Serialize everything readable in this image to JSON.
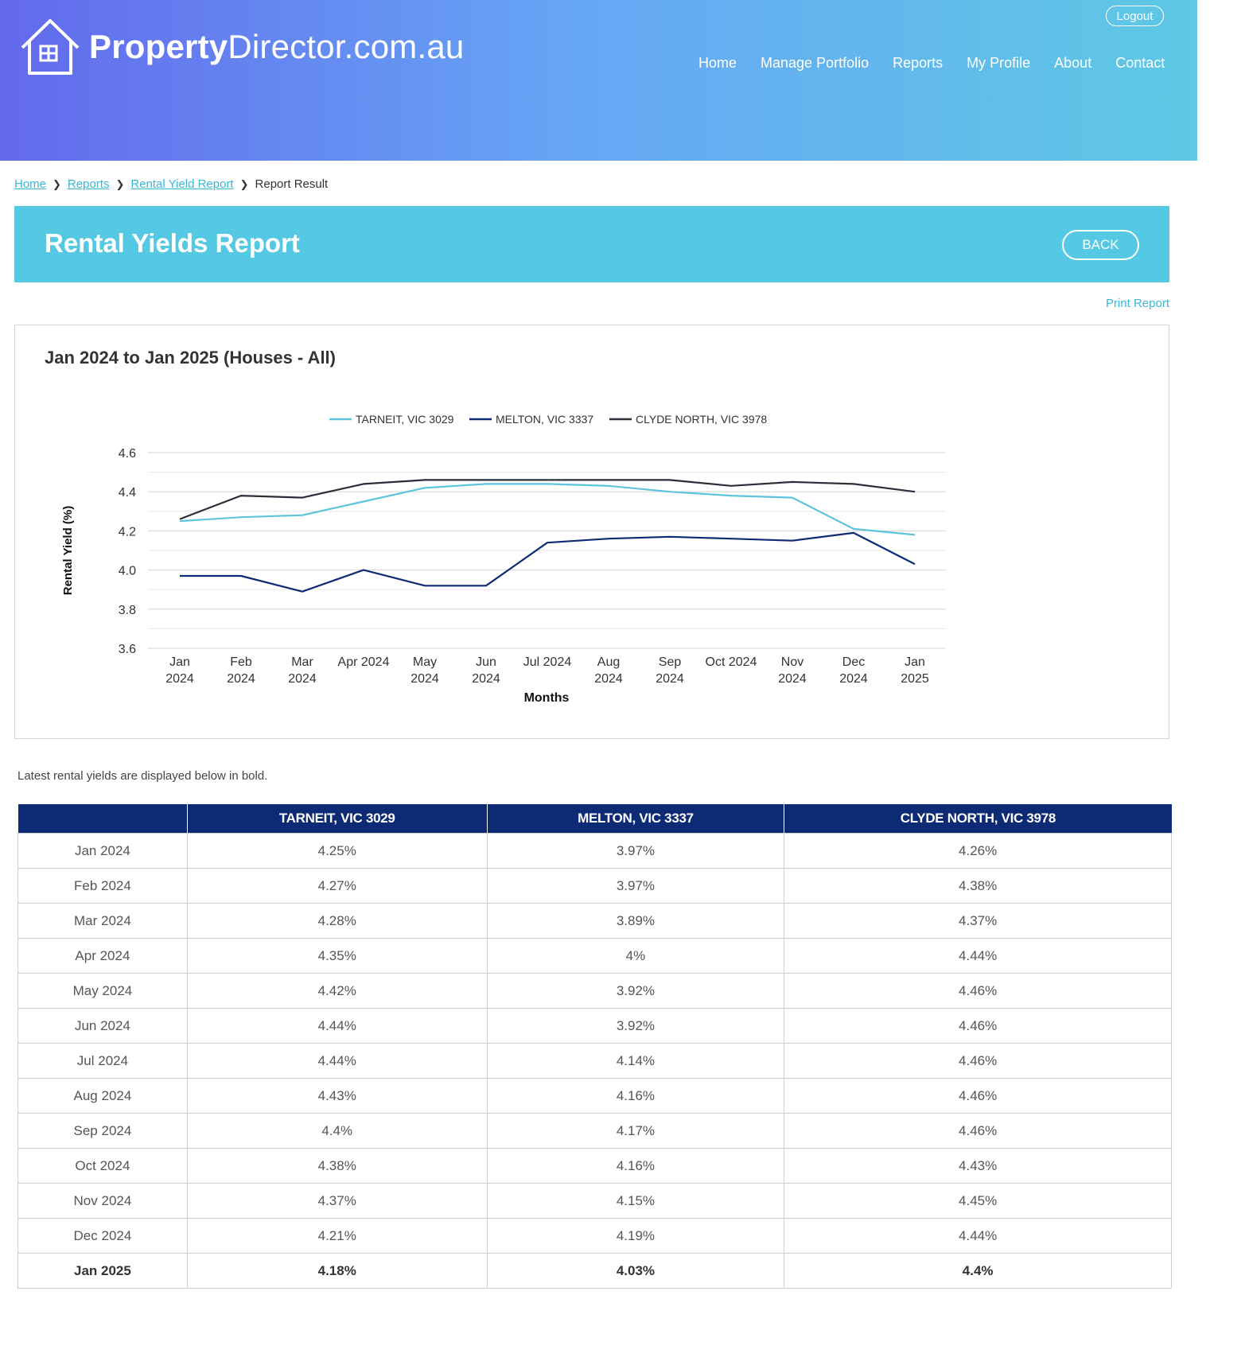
{
  "brand": {
    "bold": "Property",
    "light": "Director.com.au"
  },
  "header": {
    "logout": "Logout",
    "nav": [
      "Home",
      "Manage Portfolio",
      "Reports",
      "My Profile",
      "About",
      "Contact"
    ]
  },
  "breadcrumb": {
    "home": "Home",
    "reports": "Reports",
    "rental_yield": "Rental Yield Report",
    "current": "Report Result"
  },
  "banner": {
    "title": "Rental Yields Report",
    "back": "BACK"
  },
  "print_report": "Print Report",
  "colors": {
    "tarneit": "#5ec4de",
    "melton": "#0d2b74",
    "clyde": "#2a2f3a",
    "table_header": "#0d2b74",
    "banner": "#55c8e3"
  },
  "chart_data": {
    "type": "line",
    "title": "Jan 2024 to Jan 2025 (Houses - All)",
    "xlabel": "Months",
    "ylabel": "Rental Yield (%)",
    "ylim": [
      3.6,
      4.6
    ],
    "yticks": [
      "4.6",
      "4.4",
      "4.2",
      "4.0",
      "3.8",
      "3.6"
    ],
    "categories": [
      "Jan 2024",
      "Feb 2024",
      "Mar 2024",
      "Apr 2024",
      "May 2024",
      "Jun 2024",
      "Jul 2024",
      "Aug 2024",
      "Sep 2024",
      "Oct 2024",
      "Nov 2024",
      "Dec 2024",
      "Jan 2025"
    ],
    "legend_position": "top",
    "grid": true,
    "series": [
      {
        "name": "TARNEIT, VIC 3029",
        "values": [
          4.25,
          4.27,
          4.28,
          4.35,
          4.42,
          4.44,
          4.44,
          4.43,
          4.4,
          4.38,
          4.37,
          4.21,
          4.18
        ]
      },
      {
        "name": "MELTON, VIC 3337",
        "values": [
          3.97,
          3.97,
          3.89,
          4.0,
          3.92,
          3.92,
          4.14,
          4.16,
          4.17,
          4.16,
          4.15,
          4.19,
          4.03
        ]
      },
      {
        "name": "CLYDE NORTH, VIC 3978",
        "values": [
          4.26,
          4.38,
          4.37,
          4.44,
          4.46,
          4.46,
          4.46,
          4.46,
          4.46,
          4.43,
          4.45,
          4.44,
          4.4
        ]
      }
    ]
  },
  "note": "Latest rental yields are displayed below in bold.",
  "table": {
    "headers": [
      "",
      "TARNEIT, VIC 3029",
      "MELTON, VIC 3337",
      "CLYDE NORTH, VIC 3978"
    ],
    "rows": [
      [
        "Jan 2024",
        "4.25%",
        "3.97%",
        "4.26%"
      ],
      [
        "Feb 2024",
        "4.27%",
        "3.97%",
        "4.38%"
      ],
      [
        "Mar 2024",
        "4.28%",
        "3.89%",
        "4.37%"
      ],
      [
        "Apr 2024",
        "4.35%",
        "4%",
        "4.44%"
      ],
      [
        "May 2024",
        "4.42%",
        "3.92%",
        "4.46%"
      ],
      [
        "Jun 2024",
        "4.44%",
        "3.92%",
        "4.46%"
      ],
      [
        "Jul 2024",
        "4.44%",
        "4.14%",
        "4.46%"
      ],
      [
        "Aug 2024",
        "4.43%",
        "4.16%",
        "4.46%"
      ],
      [
        "Sep 2024",
        "4.4%",
        "4.17%",
        "4.46%"
      ],
      [
        "Oct 2024",
        "4.38%",
        "4.16%",
        "4.43%"
      ],
      [
        "Nov 2024",
        "4.37%",
        "4.15%",
        "4.45%"
      ],
      [
        "Dec 2024",
        "4.21%",
        "4.19%",
        "4.44%"
      ],
      [
        "Jan 2025",
        "4.18%",
        "4.03%",
        "4.4%"
      ]
    ]
  }
}
